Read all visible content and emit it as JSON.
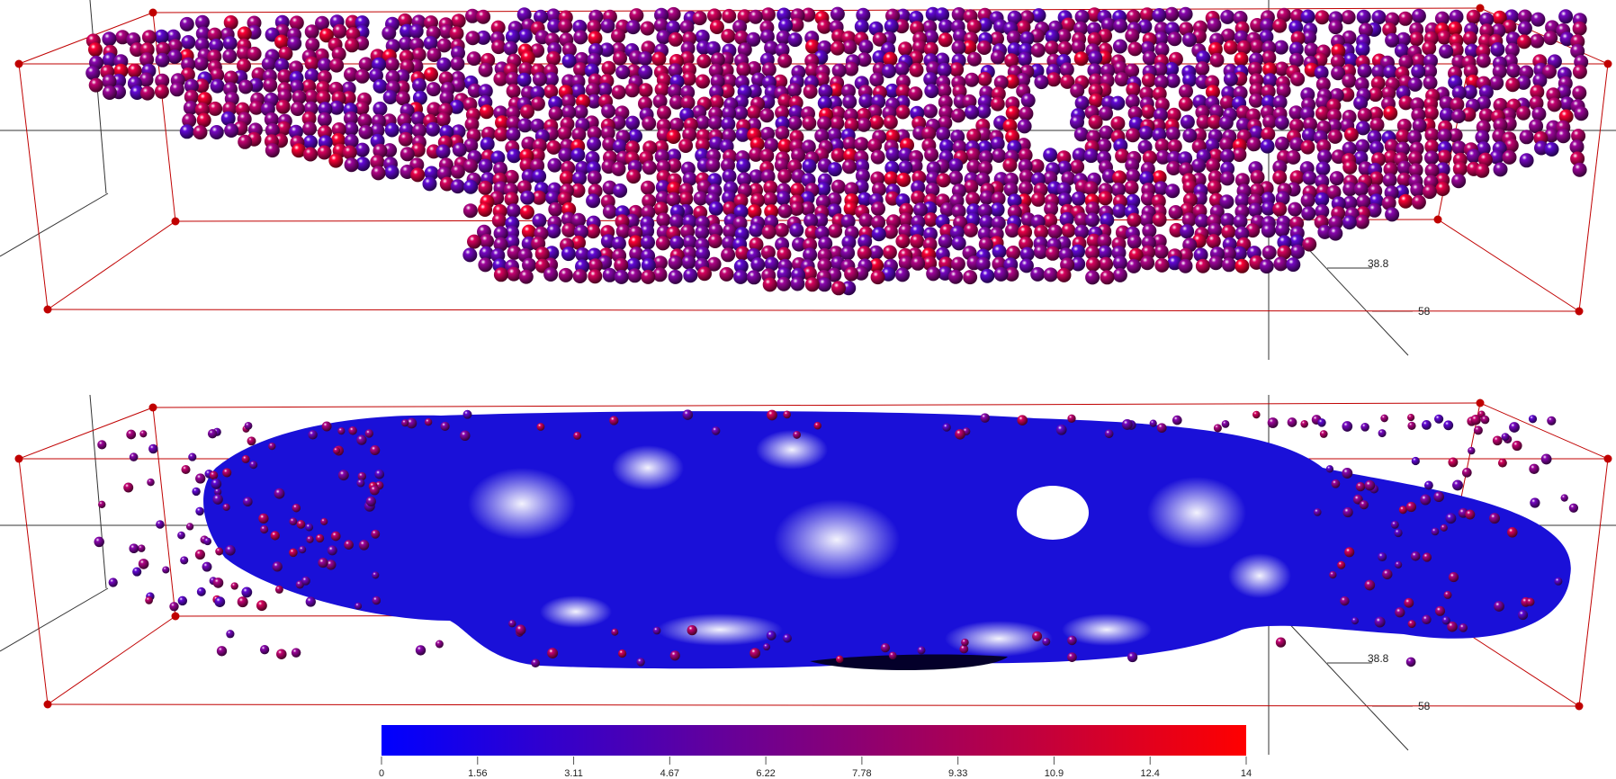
{
  "chart_data": {
    "type": "scatter",
    "dimensions": 3,
    "panels": [
      {
        "render": "spheres",
        "axis_tick_labels": [
          "38.8",
          "58"
        ]
      },
      {
        "render": "surface",
        "axis_tick_labels": [
          "38.8",
          "58"
        ]
      }
    ],
    "colorbar": {
      "range": [
        0,
        14
      ],
      "ticks": [
        "0",
        "1.56",
        "3.11",
        "4.67",
        "6.22",
        "7.78",
        "9.33",
        "10.9",
        "12.4",
        "14"
      ],
      "placement": "bottom",
      "color_low": "#0000ff",
      "color_high": "#ff0000"
    },
    "bounding_box_color": "#c00000",
    "axis_color": "#000000"
  }
}
